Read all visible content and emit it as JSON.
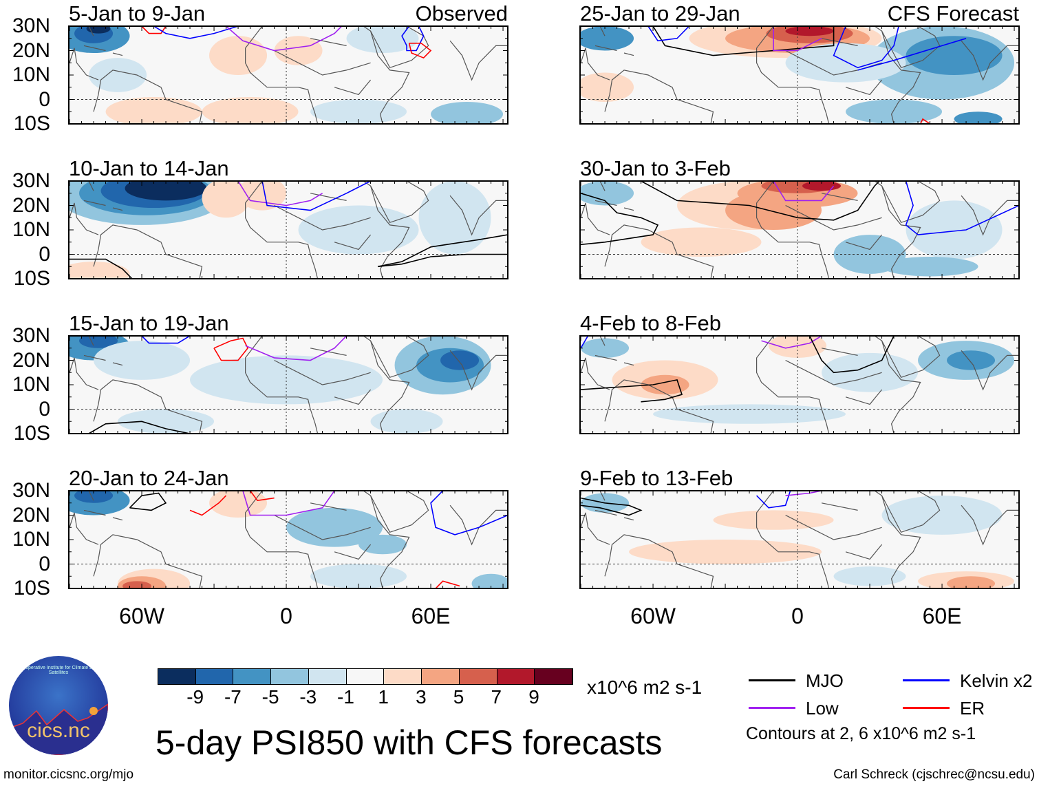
{
  "panels": [
    {
      "title": "5-Jan to 9-Jan",
      "tag": "Observed"
    },
    {
      "title": "10-Jan to 14-Jan"
    },
    {
      "title": "15-Jan to 19-Jan"
    },
    {
      "title": "20-Jan to 24-Jan"
    },
    {
      "title": "25-Jan to 29-Jan",
      "tag": "CFS Forecast"
    },
    {
      "title": "30-Jan to 3-Feb"
    },
    {
      "title": "4-Feb to 8-Feb"
    },
    {
      "title": "9-Feb to 13-Feb"
    }
  ],
  "lat_labels": [
    "30N",
    "20N",
    "10N",
    "0",
    "10S"
  ],
  "lon_labels": [
    "60W",
    "0",
    "60E"
  ],
  "colorbar": {
    "colors": [
      "#0b2d5e",
      "#2166ac",
      "#4393c3",
      "#92c5de",
      "#d1e5f0",
      "#f7f7f7",
      "#fddbc7",
      "#f4a582",
      "#d6604d",
      "#b2182b",
      "#67001f"
    ],
    "ticks": [
      "-9",
      "-7",
      "-5",
      "-3",
      "-1",
      "1",
      "3",
      "5",
      "7",
      "9"
    ],
    "units": "x10^6 m2 s-1"
  },
  "legend": {
    "items": [
      {
        "label": "MJO",
        "color": "#000000"
      },
      {
        "label": "Low",
        "color": "#a020f0"
      },
      {
        "label": "Kelvin x2",
        "color": "#0000ff"
      },
      {
        "label": "ER",
        "color": "#ff0000"
      }
    ],
    "note": "Contours at 2, 6 x10^6 m2 s-1"
  },
  "title": "5-day PSI850 with CFS forecasts",
  "logo": {
    "text": "cics.nc",
    "ring": "Cooperative Institute for Climate and Satellites"
  },
  "url": "monitor.cicsnc.org/mjo",
  "credit": "Carl Schreck (cjschrec@ncsu.edu)"
}
